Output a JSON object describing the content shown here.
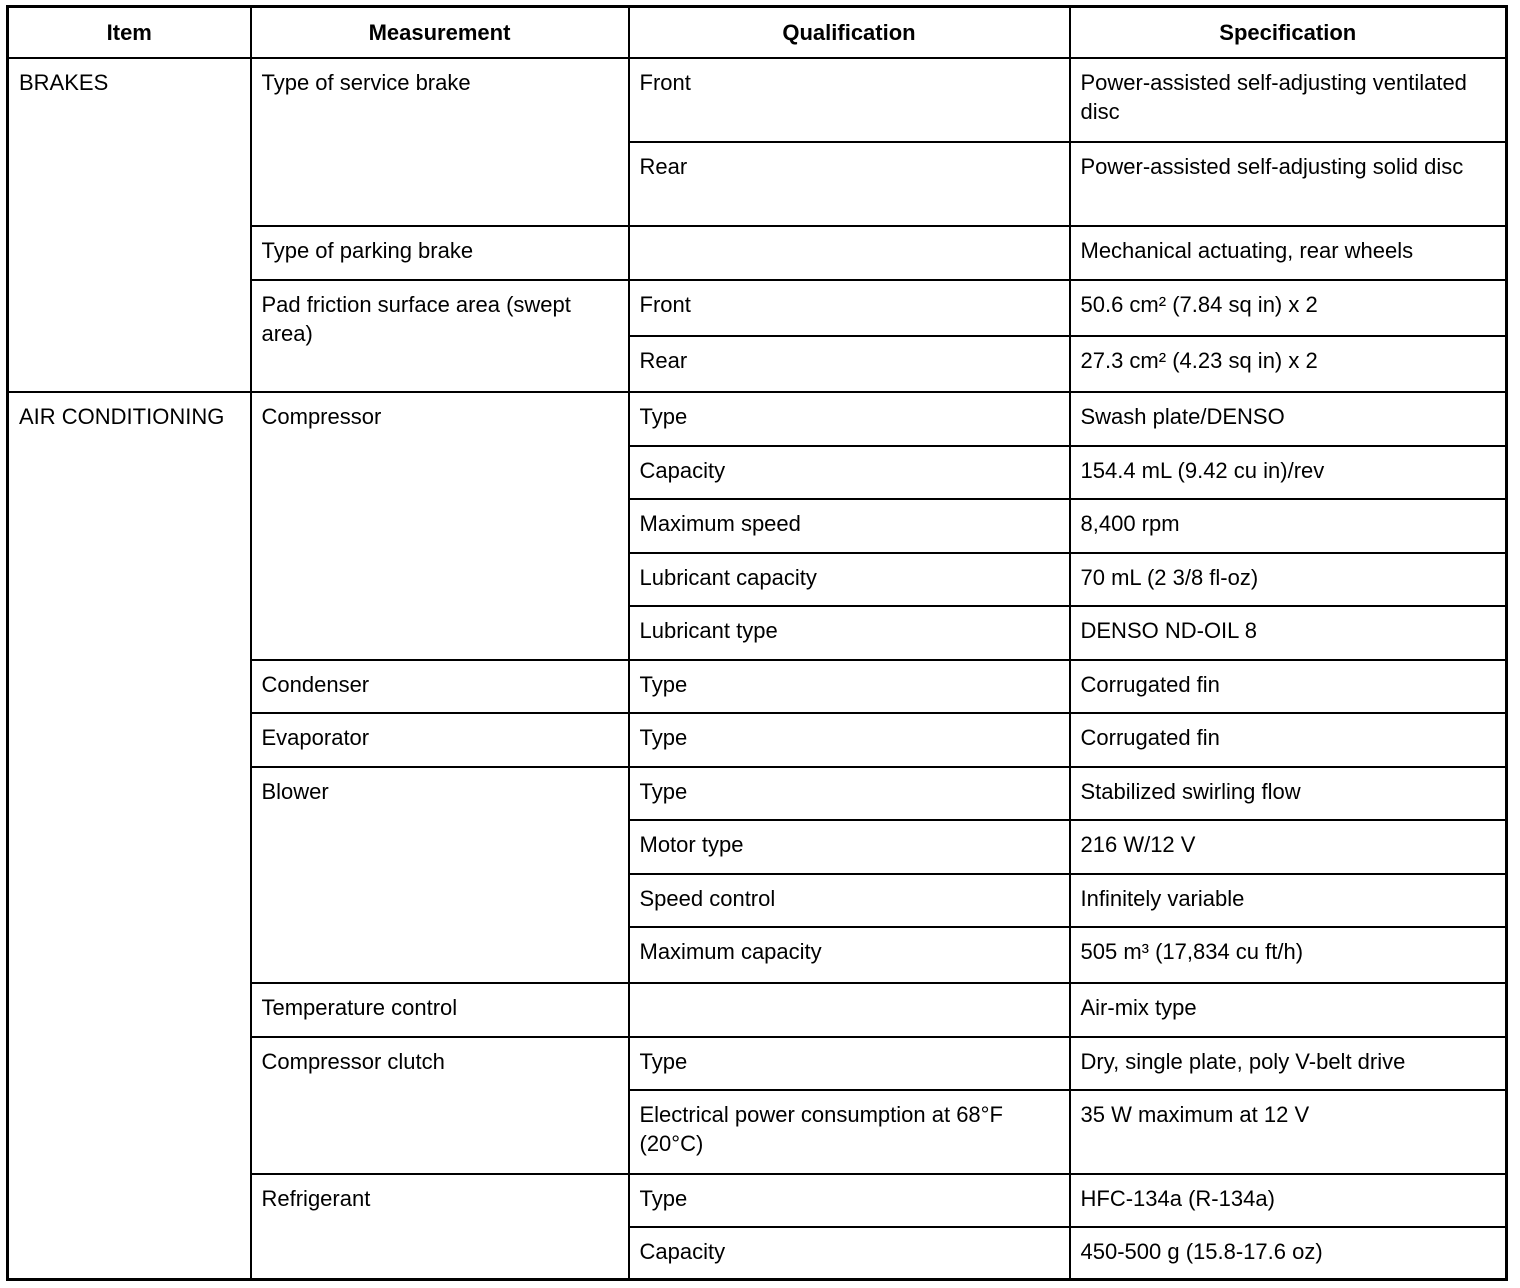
{
  "headers": [
    "Item",
    "Measurement",
    "Qualification",
    "Specification"
  ],
  "sections": [
    {
      "item": "BRAKES",
      "groups": [
        {
          "measurement": "Type of service brake",
          "rows": [
            {
              "qualification": "Front",
              "specification": "Power-assisted self-adjusting ventilated disc"
            },
            {
              "qualification": "Rear",
              "specification": "Power-assisted self-adjusting solid disc"
            }
          ]
        },
        {
          "measurement": "Type of parking brake",
          "rows": [
            {
              "qualification": "",
              "specification": "Mechanical actuating, rear wheels"
            }
          ]
        },
        {
          "measurement": "Pad friction surface area (swept area)",
          "rows": [
            {
              "qualification": "Front",
              "specification": "50.6 cm² (7.84 sq in) x 2"
            },
            {
              "qualification": "Rear",
              "specification": "27.3 cm² (4.23 sq in) x 2"
            }
          ]
        }
      ]
    },
    {
      "item": "AIR CONDITIONING",
      "groups": [
        {
          "measurement": "Compressor",
          "rows": [
            {
              "qualification": "Type",
              "specification": "Swash plate/DENSO"
            },
            {
              "qualification": "Capacity",
              "specification": "154.4 mL (9.42 cu in)/rev"
            },
            {
              "qualification": "Maximum speed",
              "specification": "8,400 rpm"
            },
            {
              "qualification": "Lubricant capacity",
              "specification": "70 mL (2 3/8 fl-oz)"
            },
            {
              "qualification": "Lubricant type",
              "specification": "DENSO ND-OIL 8"
            }
          ]
        },
        {
          "measurement": "Condenser",
          "rows": [
            {
              "qualification": "Type",
              "specification": "Corrugated fin"
            }
          ]
        },
        {
          "measurement": "Evaporator",
          "rows": [
            {
              "qualification": "Type",
              "specification": "Corrugated fin"
            }
          ]
        },
        {
          "measurement": "Blower",
          "rows": [
            {
              "qualification": "Type",
              "specification": "Stabilized swirling flow"
            },
            {
              "qualification": "Motor type",
              "specification": "216 W/12 V"
            },
            {
              "qualification": "Speed control",
              "specification": "Infinitely variable"
            },
            {
              "qualification": "Maximum capacity",
              "specification": "505 m³ (17,834 cu ft/h)"
            }
          ]
        },
        {
          "measurement": "Temperature control",
          "rows": [
            {
              "qualification": "",
              "specification": "Air-mix type"
            }
          ]
        },
        {
          "measurement": "Compressor clutch",
          "rows": [
            {
              "qualification": "Type",
              "specification": "Dry, single plate, poly V-belt drive"
            },
            {
              "qualification": "Electrical power consumption at 68°F (20°C)",
              "specification": "35 W maximum at 12 V"
            }
          ]
        },
        {
          "measurement": "Refrigerant",
          "rows": [
            {
              "qualification": "Type",
              "specification": "HFC-134a (R-134a)"
            },
            {
              "qualification": "Capacity",
              "specification": "450-500 g (15.8-17.6 oz)"
            }
          ]
        }
      ]
    }
  ]
}
